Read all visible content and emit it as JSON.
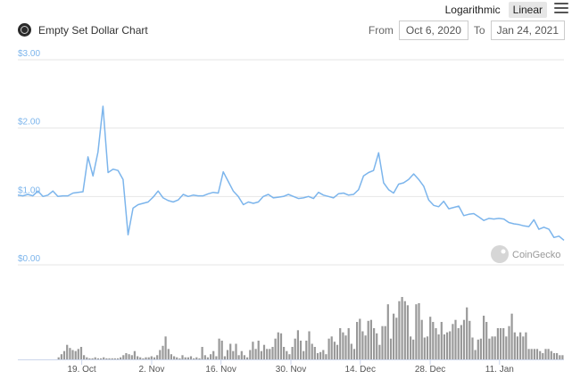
{
  "header": {
    "scale_options": [
      "Logarithmic",
      "Linear"
    ],
    "active_scale": "Linear",
    "menu_icon": "hamburger-menu-icon"
  },
  "title": {
    "logo_icon": "empty-set-dollar-logo-icon",
    "text": "Empty Set Dollar Chart"
  },
  "date_range": {
    "from_label": "From",
    "from_value": "Oct 6, 2020",
    "to_label": "To",
    "to_value": "Jan 24, 2021"
  },
  "watermark": {
    "text": "CoinGecko",
    "icon": "coingecko-gecko-icon"
  },
  "colors": {
    "line": "#7cb5ec",
    "volume": "#999999",
    "grid": "#e6e6e6"
  },
  "chart_data": [
    {
      "type": "line",
      "title": "",
      "x_start": "Oct 6, 2020",
      "x_end": "Jan 24, 2021",
      "y_ticks": [
        "$0.00",
        "$1.00",
        "$2.00",
        "$3.00"
      ],
      "y_tick_values": [
        0,
        1,
        2,
        3
      ],
      "ylim": [
        0,
        3
      ],
      "x_ticks": [
        "19. Oct",
        "2. Nov",
        "16. Nov",
        "30. Nov",
        "14. Dec",
        "28. Dec",
        "11. Jan"
      ],
      "grid": true,
      "series": [
        {
          "values": [
            1.02,
            1.01,
            1.03,
            1.01,
            1.08,
            1.0,
            1.02,
            1.08,
            1.0,
            1.01,
            1.01,
            1.05,
            1.06,
            1.07,
            1.58,
            1.3,
            1.65,
            2.32,
            1.35,
            1.4,
            1.38,
            1.25,
            0.44,
            0.83,
            0.88,
            0.9,
            0.92,
            0.99,
            1.08,
            0.98,
            0.94,
            0.92,
            0.95,
            1.03,
            1.0,
            1.02,
            1.01,
            1.01,
            1.04,
            1.06,
            1.05,
            1.36,
            1.22,
            1.08,
            1.0,
            0.88,
            0.92,
            0.9,
            0.92,
            1.0,
            1.03,
            0.98,
            0.99,
            1.0,
            1.03,
            1.0,
            0.97,
            0.98,
            1.0,
            0.97,
            1.06,
            1.02,
            1.0,
            0.98,
            1.04,
            1.05,
            1.02,
            1.03,
            1.1,
            1.3,
            1.35,
            1.38,
            1.64,
            1.2,
            1.1,
            1.05,
            1.18,
            1.2,
            1.25,
            1.33,
            1.25,
            1.15,
            0.95,
            0.87,
            0.85,
            0.93,
            0.82,
            0.84,
            0.86,
            0.72,
            0.74,
            0.75,
            0.7,
            0.65,
            0.68,
            0.67,
            0.68,
            0.67,
            0.62,
            0.6,
            0.59,
            0.57,
            0.56,
            0.66,
            0.52,
            0.55,
            0.52,
            0.4,
            0.42,
            0.36
          ]
        }
      ]
    },
    {
      "type": "bar",
      "title": "",
      "series": [
        {
          "values": [
            0,
            0,
            0,
            0,
            0,
            0,
            0,
            0,
            0,
            0,
            0,
            0,
            0,
            0,
            2,
            5,
            8,
            14,
            11,
            9,
            8,
            10,
            12,
            4,
            2,
            1,
            1,
            2,
            1,
            1,
            2,
            1,
            1,
            1,
            1,
            1,
            2,
            4,
            6,
            5,
            4,
            8,
            3,
            2,
            1,
            2,
            2,
            3,
            2,
            4,
            9,
            13,
            22,
            10,
            5,
            3,
            2,
            1,
            4,
            2,
            2,
            3,
            1,
            2,
            1,
            12,
            4,
            2,
            5,
            8,
            3,
            20,
            18,
            3,
            9,
            15,
            8,
            15,
            4,
            8,
            4,
            2,
            9,
            17,
            10,
            18,
            8,
            14,
            10,
            10,
            12,
            20,
            26,
            25,
            12,
            8,
            5,
            12,
            20,
            28,
            18,
            8,
            18,
            27,
            15,
            12,
            6,
            7,
            9,
            5,
            20,
            22,
            17,
            14,
            30,
            26,
            23,
            30,
            15,
            10,
            36,
            39,
            27,
            23,
            37,
            38,
            30,
            25,
            14,
            32,
            32,
            53,
            20,
            44,
            40,
            56,
            60,
            56,
            52,
            22,
            19,
            53,
            54,
            38,
            21,
            22,
            41,
            36,
            30,
            24,
            36,
            24,
            26,
            27,
            34,
            38,
            30,
            33,
            38,
            50,
            37,
            21,
            9,
            19,
            20,
            42,
            36,
            20,
            22,
            22,
            30,
            30,
            30,
            22,
            32,
            44,
            26,
            22,
            26,
            22,
            26,
            10,
            10,
            10,
            10,
            8,
            6,
            10,
            10,
            8,
            6,
            6,
            4,
            4
          ]
        }
      ]
    }
  ]
}
